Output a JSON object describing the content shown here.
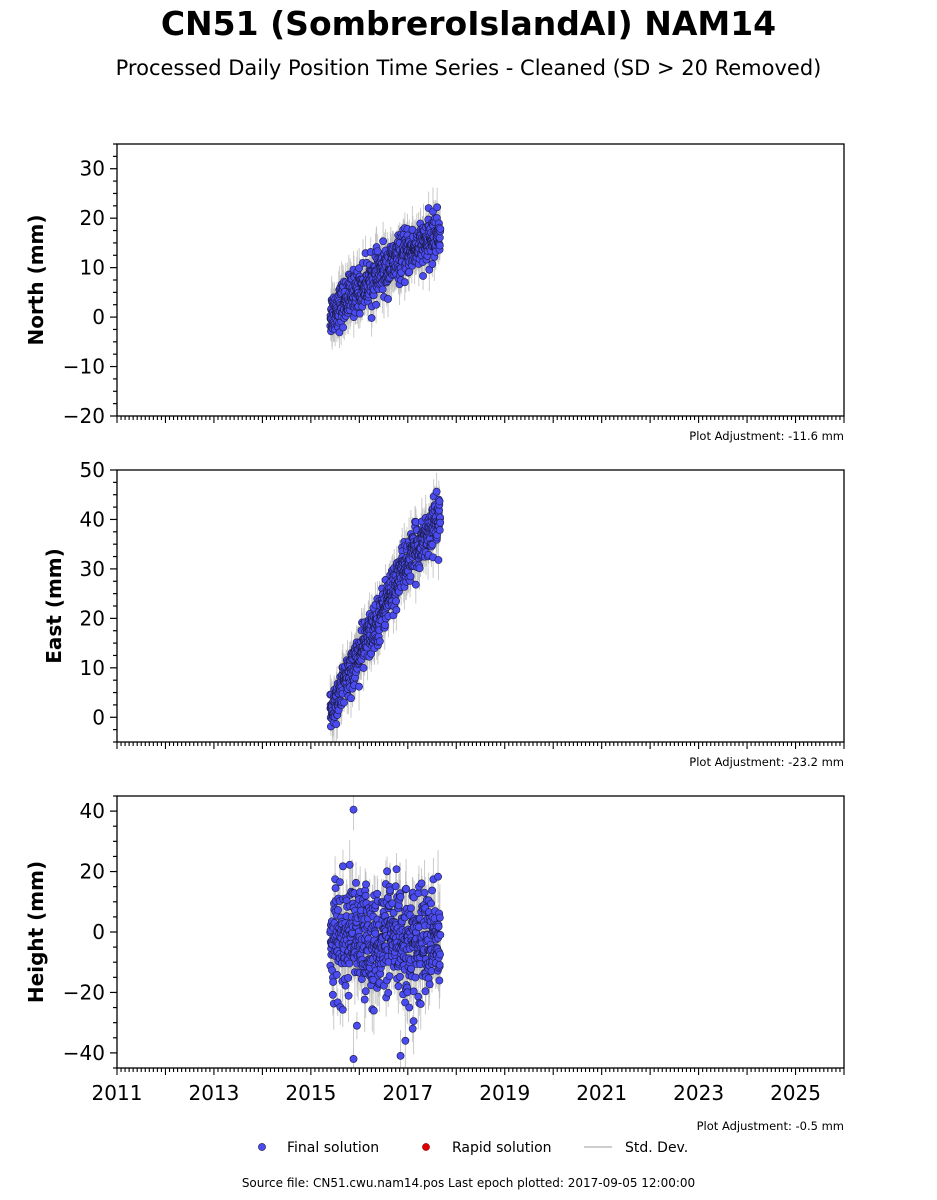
{
  "title": "CN51 (SombreroIslandAI) NAM14",
  "subtitle": "Processed Daily Position Time Series - Cleaned (SD > 20 Removed)",
  "source": "Source file: CN51.cwu.nam14.pos  Last epoch plotted: 2017-09-05 12:00:00",
  "colors": {
    "final": "#4b4bf2",
    "rapid": "#e00000",
    "std": "#bdbdbd",
    "edge": "#1a1a40"
  },
  "legend": {
    "final": "Final solution",
    "rapid": "Rapid solution",
    "std": "Std. Dev.",
    "placement": "bottom-center"
  },
  "chart_data": [
    {
      "type": "scatter",
      "ylabel": "North (mm)",
      "xlim": [
        2011,
        2026
      ],
      "ylim": [
        -20,
        35
      ],
      "yticks": [
        -20,
        -10,
        0,
        10,
        20,
        30
      ],
      "xticks": [
        2011,
        2013,
        2015,
        2017,
        2019,
        2021,
        2023,
        2025
      ],
      "show_xtick_labels": false,
      "adjustment": "Plot Adjustment: -11.6 mm",
      "series": [
        {
          "name": "Final solution",
          "trend": {
            "x": [
              2015.4,
              2015.9,
              2016.4,
              2016.9,
              2017.4,
              2017.67
            ],
            "y": [
              0.5,
              5,
              8.5,
              12.5,
              15,
              17.5
            ]
          },
          "scatter": 2.2,
          "err": 3.5
        }
      ]
    },
    {
      "type": "scatter",
      "ylabel": "East (mm)",
      "xlim": [
        2011,
        2026
      ],
      "ylim": [
        -5,
        50
      ],
      "yticks": [
        0,
        10,
        20,
        30,
        40,
        50
      ],
      "xticks": [
        2011,
        2013,
        2015,
        2017,
        2019,
        2021,
        2023,
        2025
      ],
      "show_xtick_labels": false,
      "adjustment": "Plot Adjustment: -23.2 mm",
      "series": [
        {
          "name": "Final solution",
          "trend": {
            "x": [
              2015.4,
              2015.9,
              2016.4,
              2016.9,
              2017.4,
              2017.67
            ],
            "y": [
              1,
              11,
              20,
              30,
              37,
              41
            ]
          },
          "scatter": 2.3,
          "err": 3.5
        }
      ]
    },
    {
      "type": "scatter",
      "ylabel": "Height (mm)",
      "xlim": [
        2011,
        2026
      ],
      "ylim": [
        -45,
        45
      ],
      "yticks": [
        -40,
        -20,
        0,
        20,
        40
      ],
      "xticks": [
        2011,
        2013,
        2015,
        2017,
        2019,
        2021,
        2023,
        2025
      ],
      "show_xtick_labels": true,
      "adjustment": "Plot Adjustment: -0.5 mm",
      "series": [
        {
          "name": "Final solution",
          "trend": {
            "x": [
              2015.4,
              2017.67
            ],
            "y": [
              -3,
              -3
            ]
          },
          "scatter": 8.5,
          "err": 8,
          "outliers": {
            "x": [
              2015.88,
              2015.88,
              2016.85,
              2016.95,
              2017.1,
              2017.12,
              2016.3,
              2015.95
            ],
            "y": [
              40.5,
              -42,
              -41,
              -36,
              -32,
              -29.5,
              -26,
              -31
            ]
          }
        }
      ]
    }
  ]
}
